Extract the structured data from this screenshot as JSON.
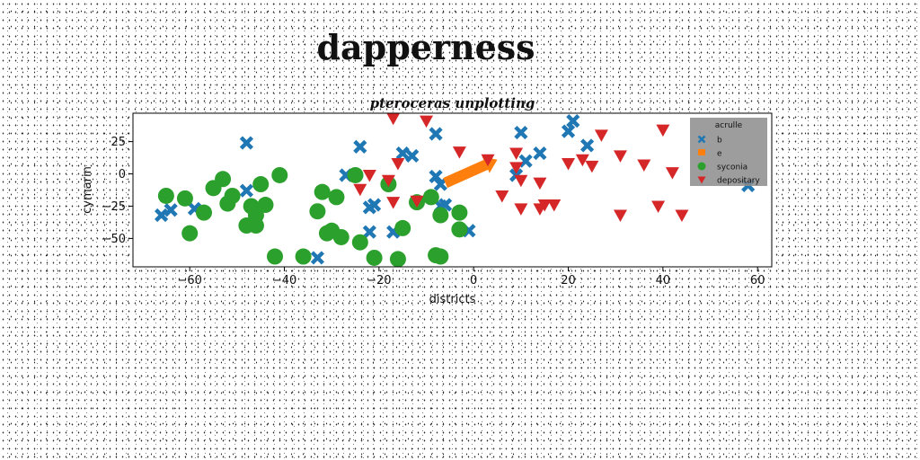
{
  "title": "dapperness",
  "chart_data": {
    "type": "scatter",
    "title": "pteroceras unplotting",
    "xlabel": "districts",
    "ylabel": "cymarin",
    "xlim": [
      -72,
      63
    ],
    "ylim": [
      -72,
      47
    ],
    "xticks": [
      -60,
      -40,
      -20,
      0,
      20,
      40,
      60
    ],
    "yticks": [
      -50,
      -25,
      0,
      25
    ],
    "ytick_labels": [
      "−50",
      "−25",
      "0",
      "25"
    ],
    "xtick_labels": [
      "−60",
      "−40",
      "−20",
      "0",
      "20",
      "40",
      "60"
    ],
    "grid": false,
    "legend": {
      "title": "acrulle",
      "placement": "top-right"
    },
    "series": [
      {
        "name": "b",
        "marker": "x",
        "color": "#1f77b4",
        "points": [
          [
            -66,
            -32
          ],
          [
            -64,
            -28
          ],
          [
            -59,
            -27
          ],
          [
            -48,
            -13
          ],
          [
            -48,
            24
          ],
          [
            -24,
            21
          ],
          [
            -22,
            -26
          ],
          [
            -22,
            -45
          ],
          [
            -21,
            -24
          ],
          [
            -17,
            -45
          ],
          [
            -15,
            16
          ],
          [
            -13,
            14
          ],
          [
            -8,
            31
          ],
          [
            -8,
            -2
          ],
          [
            -7,
            -8
          ],
          [
            -7,
            -25
          ],
          [
            -6,
            -24
          ],
          [
            -1,
            -44
          ],
          [
            -33,
            -65
          ],
          [
            -27,
            -1
          ],
          [
            9,
            -1
          ],
          [
            10,
            32
          ],
          [
            11,
            10
          ],
          [
            14,
            16
          ],
          [
            20,
            33
          ],
          [
            21,
            41
          ],
          [
            24,
            22
          ],
          [
            58,
            -9
          ]
        ]
      },
      {
        "name": "e",
        "marker": "arrow",
        "color": "#ff7f0e",
        "points": [
          [
            -6,
            -7
          ],
          [
            5,
            11
          ]
        ]
      },
      {
        "name": "syconia",
        "marker": "o",
        "color": "#2ca02c",
        "points": [
          [
            -65,
            -17
          ],
          [
            -61,
            -19
          ],
          [
            -60,
            -46
          ],
          [
            -57,
            -30
          ],
          [
            -55,
            -11
          ],
          [
            -53,
            -4
          ],
          [
            -52,
            -23
          ],
          [
            -51,
            -17
          ],
          [
            -48,
            -40
          ],
          [
            -47,
            -25
          ],
          [
            -46,
            -32
          ],
          [
            -46,
            -40
          ],
          [
            -45,
            -8
          ],
          [
            -44,
            -24
          ],
          [
            -41,
            -1
          ],
          [
            -33,
            -29
          ],
          [
            -32,
            -14
          ],
          [
            -31,
            -46
          ],
          [
            -30,
            -44
          ],
          [
            -28,
            -49
          ],
          [
            -29,
            -18
          ],
          [
            -25,
            -1
          ],
          [
            -24,
            -53
          ],
          [
            -21,
            -65
          ],
          [
            -18,
            -8
          ],
          [
            -16,
            -66
          ],
          [
            -15,
            -42
          ],
          [
            -12,
            -22
          ],
          [
            -9,
            -18
          ],
          [
            -8,
            -63
          ],
          [
            -7,
            -64
          ],
          [
            -7,
            -32
          ],
          [
            -3,
            -43
          ],
          [
            -3,
            -30
          ],
          [
            -42,
            -64
          ],
          [
            -36,
            -64
          ]
        ]
      },
      {
        "name": "depositary",
        "marker": "v",
        "color": "#d62728",
        "points": [
          [
            -17,
            43
          ],
          [
            -17,
            -22
          ],
          [
            -10,
            41
          ],
          [
            -12,
            -21
          ],
          [
            -24,
            -12
          ],
          [
            -22,
            -1
          ],
          [
            -18,
            -5
          ],
          [
            -16,
            8
          ],
          [
            -3,
            17
          ],
          [
            3,
            11
          ],
          [
            6,
            -17
          ],
          [
            9,
            16
          ],
          [
            9,
            5
          ],
          [
            10,
            -27
          ],
          [
            10,
            -5
          ],
          [
            14,
            -27
          ],
          [
            15,
            -24
          ],
          [
            14,
            -7
          ],
          [
            17,
            -24
          ],
          [
            20,
            8
          ],
          [
            23,
            11
          ],
          [
            25,
            6
          ],
          [
            27,
            30
          ],
          [
            31,
            14
          ],
          [
            31,
            -32
          ],
          [
            36,
            7
          ],
          [
            39,
            -25
          ],
          [
            40,
            34
          ],
          [
            42,
            1
          ],
          [
            44,
            -32
          ]
        ]
      }
    ]
  }
}
